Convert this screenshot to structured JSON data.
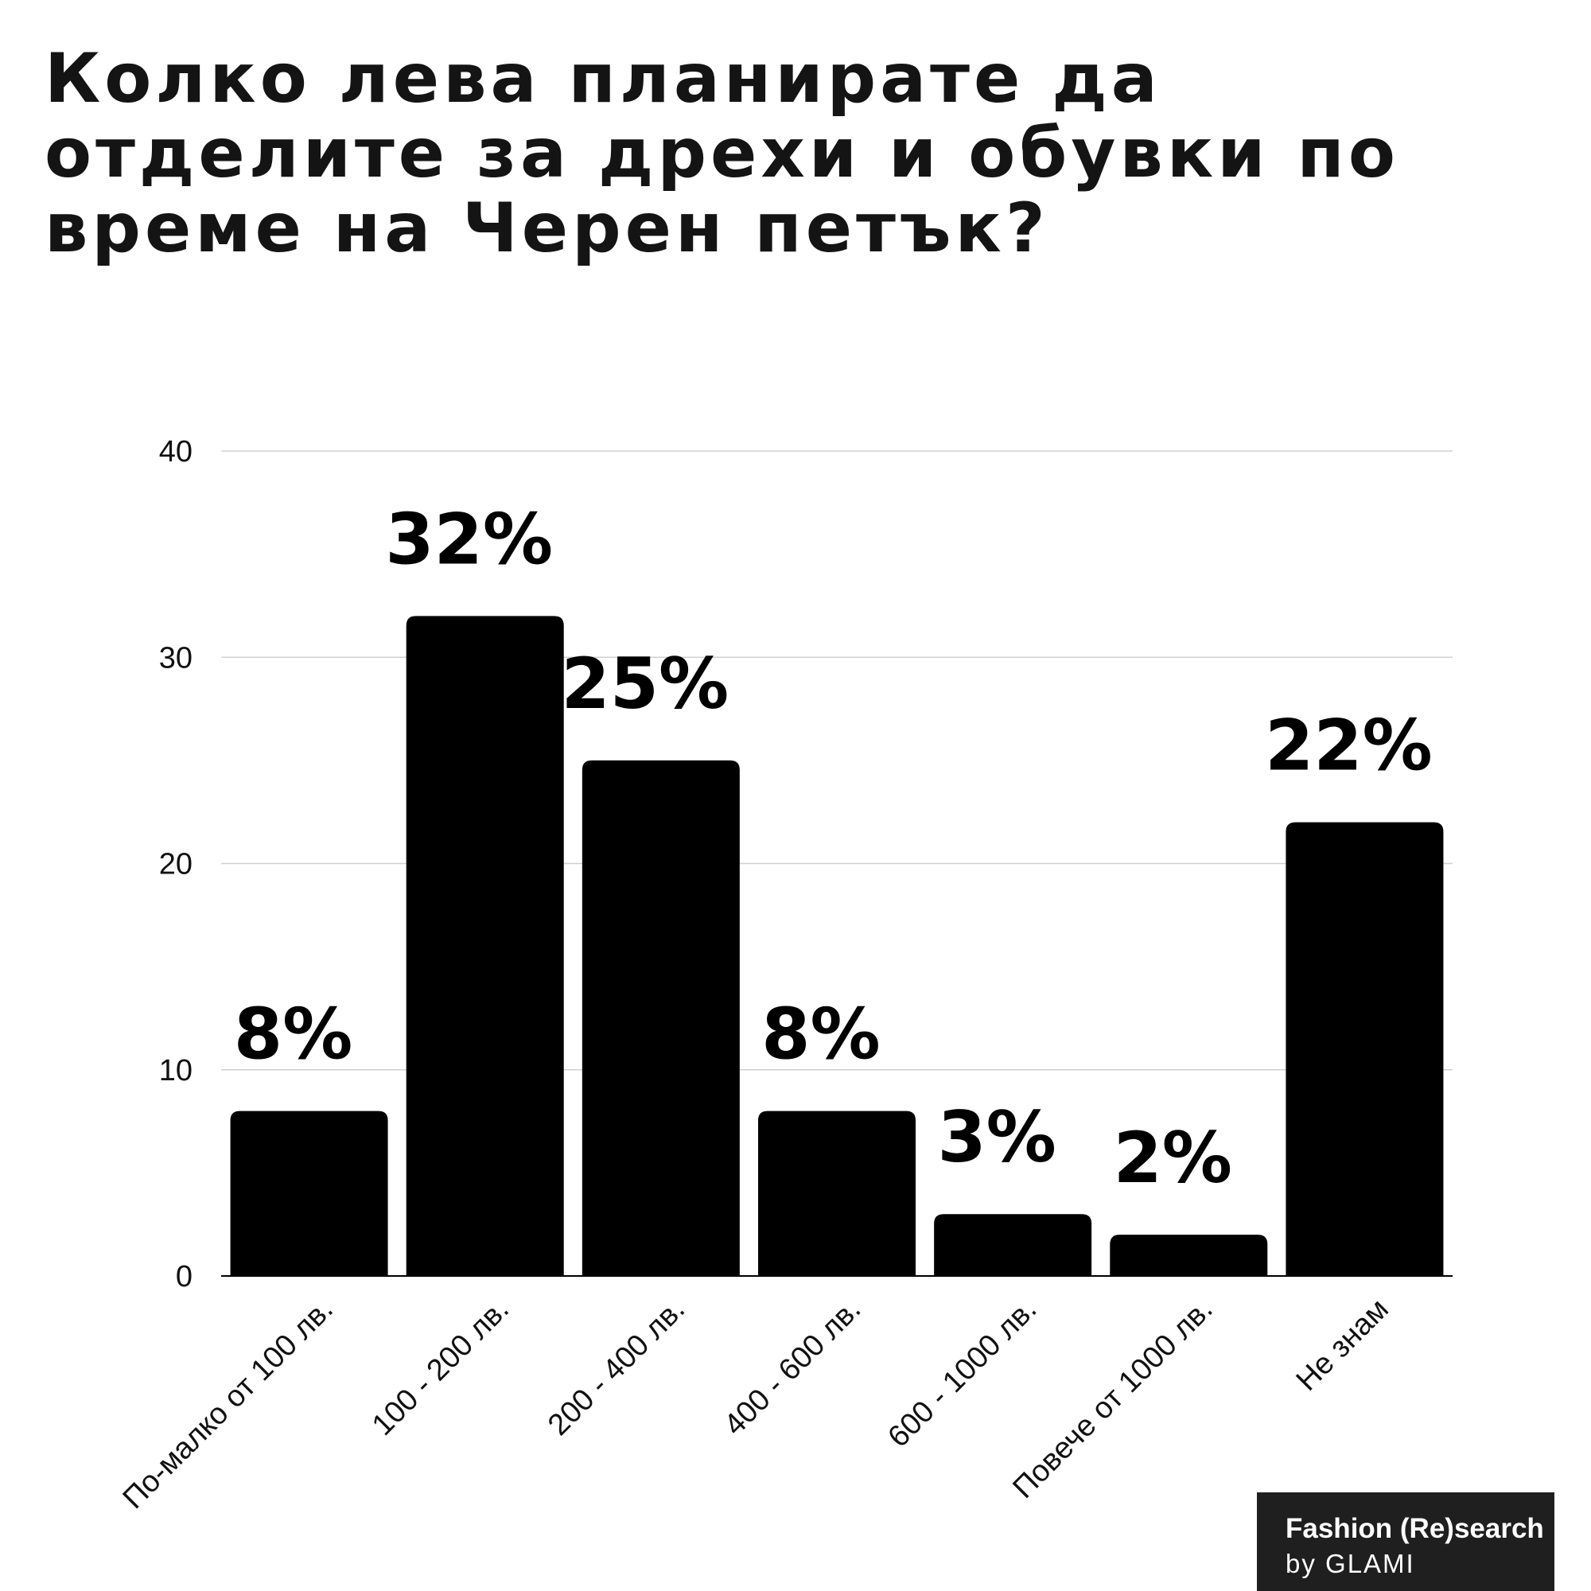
{
  "chart_data": {
    "type": "bar",
    "title": "Колко лева планирате да отделите за дрехи и обувки по време на Черен петък?",
    "categories": [
      "По-малко от 100 лв.",
      "100 - 200 лв.",
      "200 - 400 лв.",
      "400 - 600 лв.",
      "600 - 1000 лв.",
      "Повече от 1000 лв.",
      "Не знам"
    ],
    "values": [
      8,
      32,
      25,
      8,
      3,
      2,
      22
    ],
    "data_labels": [
      "8%",
      "32%",
      "25%",
      "8%",
      "3%",
      "2%",
      "22%"
    ],
    "yticks": [
      0,
      10,
      20,
      30,
      40
    ],
    "ylim": [
      0,
      40
    ],
    "grid": true,
    "legend": "none",
    "bar_color": "#000000",
    "grid_color": "#d0d0d0"
  },
  "brand": {
    "line1": "Fashion (Re)search",
    "line2": "by GLAMI"
  }
}
